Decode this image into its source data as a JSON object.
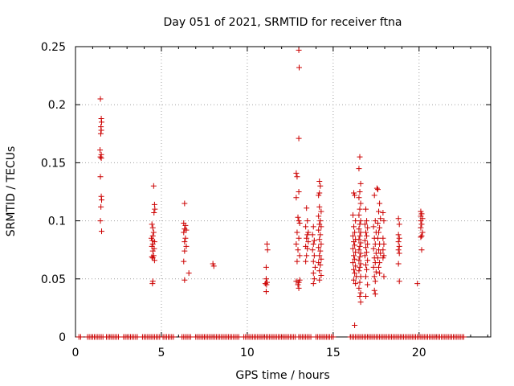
{
  "chart_data": {
    "type": "scatter",
    "title": "Day 051 of 2021, SRMTID for receiver ftna",
    "xlabel": "GPS time / hours",
    "ylabel": "SRMTID / TECUs",
    "xlim": [
      0,
      24.17
    ],
    "ylim": [
      0,
      0.25
    ],
    "xticks": [
      0,
      5,
      10,
      15,
      20
    ],
    "xtick_labels": [
      "0",
      "5",
      "10",
      "15",
      "20"
    ],
    "yticks": [
      0,
      0.05,
      0.1,
      0.15,
      0.2,
      0.25
    ],
    "ytick_labels": [
      "0",
      "0.05",
      "0.1",
      "0.15",
      "0.2",
      "0.25"
    ],
    "grid": true,
    "marker": "+",
    "color": "#cc0000",
    "zero_ranges": [
      [
        0.2,
        0.3
      ],
      [
        0.7,
        1.6
      ],
      [
        1.8,
        2.5
      ],
      [
        2.8,
        3.6
      ],
      [
        3.9,
        4.9
      ],
      [
        5.1,
        5.7
      ],
      [
        6.2,
        6.7
      ],
      [
        7.0,
        7.5
      ],
      [
        7.5,
        9.5
      ],
      [
        9.8,
        12.8
      ],
      [
        13.0,
        13.7
      ],
      [
        14.0,
        15.0
      ],
      [
        16.0,
        19.9
      ],
      [
        20.0,
        22.6
      ]
    ],
    "zero_step": 0.1,
    "points": [
      [
        1.45,
        0.205
      ],
      [
        1.5,
        0.188
      ],
      [
        1.52,
        0.185
      ],
      [
        1.48,
        0.181
      ],
      [
        1.5,
        0.178
      ],
      [
        1.47,
        0.175
      ],
      [
        1.43,
        0.161
      ],
      [
        1.5,
        0.157
      ],
      [
        1.45,
        0.155
      ],
      [
        1.5,
        0.154
      ],
      [
        1.45,
        0.138
      ],
      [
        1.5,
        0.121
      ],
      [
        1.52,
        0.118
      ],
      [
        1.48,
        0.112
      ],
      [
        1.45,
        0.1
      ],
      [
        1.52,
        0.091
      ],
      [
        4.55,
        0.13
      ],
      [
        4.6,
        0.114
      ],
      [
        4.62,
        0.11
      ],
      [
        4.57,
        0.107
      ],
      [
        4.45,
        0.097
      ],
      [
        4.5,
        0.094
      ],
      [
        4.55,
        0.09
      ],
      [
        4.5,
        0.087
      ],
      [
        4.42,
        0.085
      ],
      [
        4.48,
        0.083
      ],
      [
        4.6,
        0.082
      ],
      [
        4.5,
        0.08
      ],
      [
        4.45,
        0.078
      ],
      [
        4.58,
        0.076
      ],
      [
        4.5,
        0.074
      ],
      [
        4.55,
        0.07
      ],
      [
        4.45,
        0.069
      ],
      [
        4.5,
        0.068
      ],
      [
        4.6,
        0.066
      ],
      [
        4.5,
        0.048
      ],
      [
        4.48,
        0.046
      ],
      [
        6.35,
        0.115
      ],
      [
        6.3,
        0.098
      ],
      [
        6.4,
        0.096
      ],
      [
        6.35,
        0.093
      ],
      [
        6.45,
        0.092
      ],
      [
        6.3,
        0.09
      ],
      [
        6.4,
        0.085
      ],
      [
        6.35,
        0.082
      ],
      [
        6.45,
        0.078
      ],
      [
        6.35,
        0.074
      ],
      [
        6.3,
        0.065
      ],
      [
        6.6,
        0.055
      ],
      [
        6.35,
        0.049
      ],
      [
        8.0,
        0.063
      ],
      [
        8.05,
        0.061
      ],
      [
        11.15,
        0.08
      ],
      [
        11.18,
        0.075
      ],
      [
        11.1,
        0.06
      ],
      [
        11.1,
        0.05
      ],
      [
        11.15,
        0.047
      ],
      [
        11.05,
        0.046
      ],
      [
        11.12,
        0.045
      ],
      [
        11.1,
        0.039
      ],
      [
        13.0,
        0.247
      ],
      [
        13.02,
        0.232
      ],
      [
        13.0,
        0.171
      ],
      [
        12.85,
        0.141
      ],
      [
        12.9,
        0.138
      ],
      [
        13.0,
        0.125
      ],
      [
        12.85,
        0.12
      ],
      [
        12.95,
        0.103
      ],
      [
        13.0,
        0.1
      ],
      [
        13.05,
        0.098
      ],
      [
        12.9,
        0.09
      ],
      [
        13.0,
        0.085
      ],
      [
        12.85,
        0.08
      ],
      [
        12.95,
        0.075
      ],
      [
        13.05,
        0.07
      ],
      [
        12.9,
        0.065
      ],
      [
        12.85,
        0.048
      ],
      [
        13.0,
        0.047
      ],
      [
        12.95,
        0.045
      ],
      [
        13.05,
        0.049
      ],
      [
        13.0,
        0.042
      ],
      [
        13.45,
        0.111
      ],
      [
        13.5,
        0.1
      ],
      [
        13.4,
        0.095
      ],
      [
        13.55,
        0.09
      ],
      [
        13.5,
        0.088
      ],
      [
        13.45,
        0.085
      ],
      [
        13.55,
        0.082
      ],
      [
        13.4,
        0.078
      ],
      [
        13.5,
        0.076
      ],
      [
        13.45,
        0.07
      ],
      [
        13.4,
        0.065
      ],
      [
        13.85,
        0.095
      ],
      [
        13.8,
        0.088
      ],
      [
        13.9,
        0.083
      ],
      [
        13.85,
        0.08
      ],
      [
        13.8,
        0.075
      ],
      [
        13.9,
        0.07
      ],
      [
        13.85,
        0.065
      ],
      [
        13.95,
        0.06
      ],
      [
        13.85,
        0.055
      ],
      [
        13.9,
        0.05
      ],
      [
        13.85,
        0.046
      ],
      [
        14.2,
        0.134
      ],
      [
        14.25,
        0.13
      ],
      [
        14.2,
        0.124
      ],
      [
        14.15,
        0.122
      ],
      [
        14.2,
        0.112
      ],
      [
        14.3,
        0.108
      ],
      [
        14.15,
        0.104
      ],
      [
        14.25,
        0.1
      ],
      [
        14.2,
        0.097
      ],
      [
        14.3,
        0.095
      ],
      [
        14.15,
        0.092
      ],
      [
        14.25,
        0.088
      ],
      [
        14.2,
        0.084
      ],
      [
        14.3,
        0.08
      ],
      [
        14.15,
        0.077
      ],
      [
        14.25,
        0.074
      ],
      [
        14.2,
        0.07
      ],
      [
        14.3,
        0.067
      ],
      [
        14.15,
        0.064
      ],
      [
        14.25,
        0.062
      ],
      [
        14.2,
        0.057
      ],
      [
        14.3,
        0.053
      ],
      [
        14.2,
        0.049
      ],
      [
        16.2,
        0.124
      ],
      [
        16.25,
        0.122
      ],
      [
        16.15,
        0.105
      ],
      [
        16.3,
        0.1
      ],
      [
        16.2,
        0.095
      ],
      [
        16.25,
        0.09
      ],
      [
        16.15,
        0.087
      ],
      [
        16.3,
        0.084
      ],
      [
        16.2,
        0.082
      ],
      [
        16.25,
        0.079
      ],
      [
        16.15,
        0.076
      ],
      [
        16.3,
        0.073
      ],
      [
        16.2,
        0.07
      ],
      [
        16.25,
        0.067
      ],
      [
        16.15,
        0.064
      ],
      [
        16.3,
        0.061
      ],
      [
        16.2,
        0.058
      ],
      [
        16.25,
        0.055
      ],
      [
        16.35,
        0.052
      ],
      [
        16.2,
        0.049
      ],
      [
        16.3,
        0.046
      ],
      [
        16.25,
        0.01
      ],
      [
        16.55,
        0.155
      ],
      [
        16.5,
        0.145
      ],
      [
        16.6,
        0.132
      ],
      [
        16.55,
        0.125
      ],
      [
        16.5,
        0.12
      ],
      [
        16.6,
        0.115
      ],
      [
        16.55,
        0.11
      ],
      [
        16.5,
        0.105
      ],
      [
        16.6,
        0.1
      ],
      [
        16.55,
        0.097
      ],
      [
        16.5,
        0.093
      ],
      [
        16.6,
        0.09
      ],
      [
        16.55,
        0.087
      ],
      [
        16.5,
        0.084
      ],
      [
        16.6,
        0.081
      ],
      [
        16.55,
        0.078
      ],
      [
        16.5,
        0.075
      ],
      [
        16.6,
        0.072
      ],
      [
        16.55,
        0.069
      ],
      [
        16.5,
        0.066
      ],
      [
        16.6,
        0.063
      ],
      [
        16.55,
        0.06
      ],
      [
        16.5,
        0.057
      ],
      [
        16.6,
        0.052
      ],
      [
        16.55,
        0.047
      ],
      [
        16.5,
        0.042
      ],
      [
        16.6,
        0.038
      ],
      [
        16.55,
        0.035
      ],
      [
        16.6,
        0.03
      ],
      [
        16.9,
        0.11
      ],
      [
        16.95,
        0.1
      ],
      [
        16.85,
        0.097
      ],
      [
        17.0,
        0.094
      ],
      [
        16.9,
        0.09
      ],
      [
        16.95,
        0.087
      ],
      [
        16.85,
        0.083
      ],
      [
        17.0,
        0.08
      ],
      [
        16.9,
        0.077
      ],
      [
        16.95,
        0.073
      ],
      [
        16.85,
        0.07
      ],
      [
        17.0,
        0.066
      ],
      [
        16.9,
        0.062
      ],
      [
        16.95,
        0.058
      ],
      [
        16.9,
        0.052
      ],
      [
        17.0,
        0.045
      ],
      [
        16.9,
        0.035
      ],
      [
        17.4,
        0.122
      ],
      [
        17.45,
        0.1
      ],
      [
        17.35,
        0.095
      ],
      [
        17.5,
        0.09
      ],
      [
        17.4,
        0.085
      ],
      [
        17.45,
        0.08
      ],
      [
        17.35,
        0.076
      ],
      [
        17.5,
        0.072
      ],
      [
        17.4,
        0.068
      ],
      [
        17.45,
        0.064
      ],
      [
        17.35,
        0.06
      ],
      [
        17.5,
        0.056
      ],
      [
        17.4,
        0.052
      ],
      [
        17.45,
        0.048
      ],
      [
        17.4,
        0.04
      ],
      [
        17.45,
        0.037
      ],
      [
        17.55,
        0.128
      ],
      [
        17.6,
        0.127
      ],
      [
        17.7,
        0.115
      ],
      [
        17.65,
        0.108
      ],
      [
        17.75,
        0.102
      ],
      [
        17.6,
        0.098
      ],
      [
        17.7,
        0.094
      ],
      [
        17.65,
        0.09
      ],
      [
        17.6,
        0.085
      ],
      [
        17.7,
        0.08
      ],
      [
        17.65,
        0.075
      ],
      [
        17.75,
        0.072
      ],
      [
        17.6,
        0.068
      ],
      [
        17.7,
        0.064
      ],
      [
        17.65,
        0.06
      ],
      [
        17.7,
        0.055
      ],
      [
        17.9,
        0.107
      ],
      [
        17.95,
        0.1
      ],
      [
        17.9,
        0.085
      ],
      [
        17.95,
        0.08
      ],
      [
        17.9,
        0.075
      ],
      [
        17.95,
        0.07
      ],
      [
        17.9,
        0.068
      ],
      [
        17.95,
        0.052
      ],
      [
        18.8,
        0.102
      ],
      [
        18.85,
        0.097
      ],
      [
        18.8,
        0.088
      ],
      [
        18.85,
        0.085
      ],
      [
        18.8,
        0.082
      ],
      [
        18.85,
        0.078
      ],
      [
        18.8,
        0.075
      ],
      [
        18.85,
        0.072
      ],
      [
        18.8,
        0.063
      ],
      [
        18.85,
        0.048
      ],
      [
        20.1,
        0.108
      ],
      [
        20.15,
        0.106
      ],
      [
        20.1,
        0.104
      ],
      [
        20.2,
        0.102
      ],
      [
        20.1,
        0.1
      ],
      [
        20.15,
        0.097
      ],
      [
        20.1,
        0.094
      ],
      [
        20.2,
        0.09
      ],
      [
        20.15,
        0.087
      ],
      [
        20.1,
        0.086
      ],
      [
        20.15,
        0.075
      ],
      [
        19.9,
        0.046
      ]
    ]
  }
}
